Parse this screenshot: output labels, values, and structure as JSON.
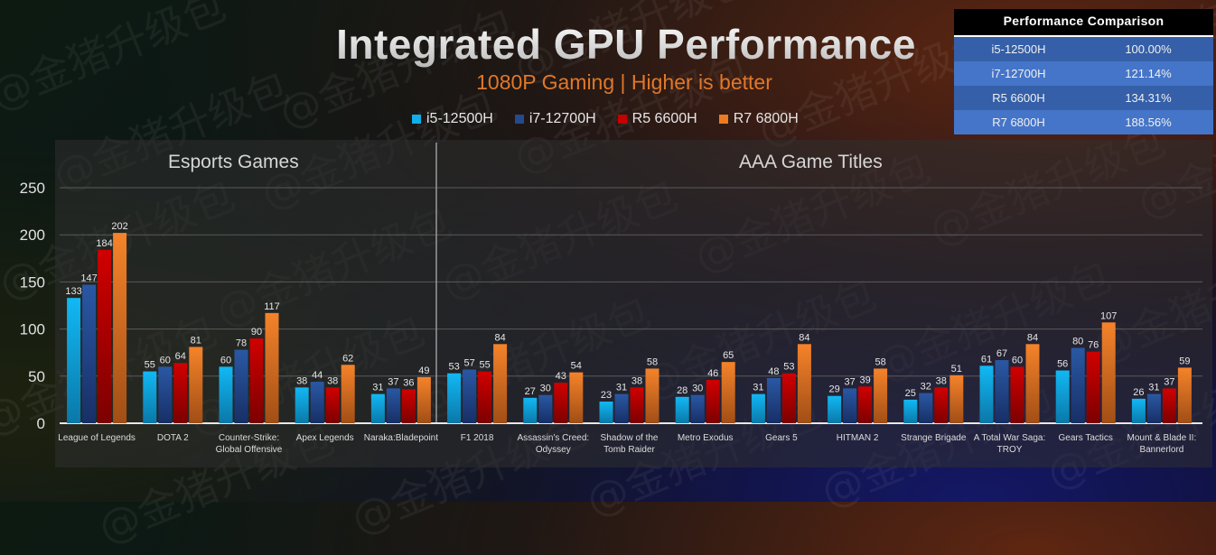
{
  "watermark": "@金猪升级包",
  "header": {
    "title": "Integrated GPU Performance",
    "subtitle": "1080P Gaming | Higher is better"
  },
  "colors": {
    "i5": "#11aee8",
    "i7": "#234a8e",
    "r5": "#c40000",
    "r7": "#ee7a22"
  },
  "perf_table": {
    "title": "Performance Comparison",
    "rows": [
      {
        "name": "i5-12500H",
        "value": "100.00%"
      },
      {
        "name": "i7-12700H",
        "value": "121.14%"
      },
      {
        "name": "R5 6600H",
        "value": "134.31%"
      },
      {
        "name": "R7 6800H",
        "value": "188.56%"
      }
    ]
  },
  "chart_data": {
    "type": "bar",
    "title": "Integrated GPU Performance",
    "subtitle": "1080P Gaming | Higher is better",
    "xlabel": "",
    "ylabel": "",
    "ylim": [
      0,
      250
    ],
    "yticks": [
      0,
      50,
      100,
      150,
      200,
      250
    ],
    "grid": true,
    "legend_position": "top-center",
    "sections": [
      {
        "title": "Esports Games",
        "start": 0,
        "end": 4
      },
      {
        "title": "AAA Game Titles",
        "start": 5,
        "end": 14
      }
    ],
    "categories": [
      "League of Legends",
      "DOTA 2",
      "Counter-Strike:\nGlobal Offensive",
      "Apex Legends",
      "Naraka:Bladepoint",
      "F1 2018",
      "Assassin's Creed:\nOdyssey",
      "Shadow of the\nTomb Raider",
      "Metro Exodus",
      "Gears 5",
      "HITMAN 2",
      "Strange Brigade",
      "A Total War Saga:\nTROY",
      "Gears Tactics",
      "Mount & Blade II:\nBannerlord"
    ],
    "series": [
      {
        "name": "i5-12500H",
        "key": "i5",
        "values": [
          133,
          55,
          60,
          38,
          31,
          53,
          27,
          23,
          28,
          31,
          29,
          25,
          61,
          56,
          26
        ]
      },
      {
        "name": "i7-12700H",
        "key": "i7",
        "values": [
          147,
          60,
          78,
          44,
          37,
          57,
          30,
          31,
          30,
          48,
          37,
          32,
          67,
          80,
          31
        ]
      },
      {
        "name": "R5 6600H",
        "key": "r5",
        "values": [
          184,
          64,
          90,
          38,
          36,
          55,
          43,
          38,
          46,
          53,
          39,
          38,
          60,
          76,
          37
        ]
      },
      {
        "name": "R7 6800H",
        "key": "r7",
        "values": [
          202,
          81,
          117,
          62,
          49,
          84,
          54,
          58,
          65,
          84,
          58,
          51,
          84,
          107,
          59
        ]
      }
    ]
  }
}
